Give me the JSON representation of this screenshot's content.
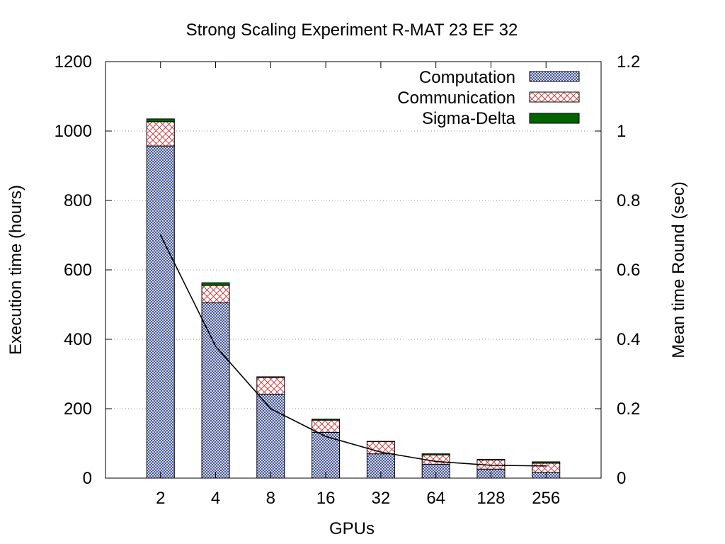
{
  "chart_data": {
    "type": "bar",
    "title": "Strong Scaling Experiment R-MAT 23 EF 32",
    "xlabel": "GPUs",
    "ylabel": "Execution time (hours)",
    "y2label": "Mean time Round (sec)",
    "categories": [
      "2",
      "4",
      "8",
      "16",
      "32",
      "64",
      "128",
      "256"
    ],
    "ylim": [
      0,
      1200
    ],
    "y_ticks": [
      "0",
      "200",
      "400",
      "600",
      "800",
      "1000",
      "1200"
    ],
    "y_tick_values": [
      0,
      200,
      400,
      600,
      800,
      1000,
      1200
    ],
    "y2lim": [
      0,
      1.2
    ],
    "y2_ticks": [
      "0",
      "0.2",
      "0.4",
      "0.6",
      "0.8",
      "1",
      "1.2"
    ],
    "y2_tick_values": [
      0,
      0.2,
      0.4,
      0.6,
      0.8,
      1.0,
      1.2
    ],
    "grid": "horizontal-dotted",
    "legend_position": "top-right",
    "stacked": true,
    "series": [
      {
        "name": "Computation",
        "color": "#2b3e8c",
        "pattern": "fine-crosshatch",
        "values": [
          957,
          505,
          242,
          132,
          70,
          40,
          26,
          17
        ]
      },
      {
        "name": "Communication",
        "color": "#d62728",
        "pattern": "diamond-crosshatch",
        "values": [
          70,
          50,
          48,
          35,
          35,
          27,
          26,
          26
        ]
      },
      {
        "name": "Sigma-Delta",
        "color": "#006400",
        "pattern": "solid",
        "values": [
          8,
          8,
          2,
          3,
          1,
          3,
          2,
          4
        ]
      }
    ],
    "line": {
      "name": "Mean time Round",
      "axis": "y2",
      "color": "#000000",
      "values": [
        0.7,
        0.38,
        0.2,
        0.12,
        0.075,
        0.048,
        0.037,
        0.035
      ]
    }
  }
}
